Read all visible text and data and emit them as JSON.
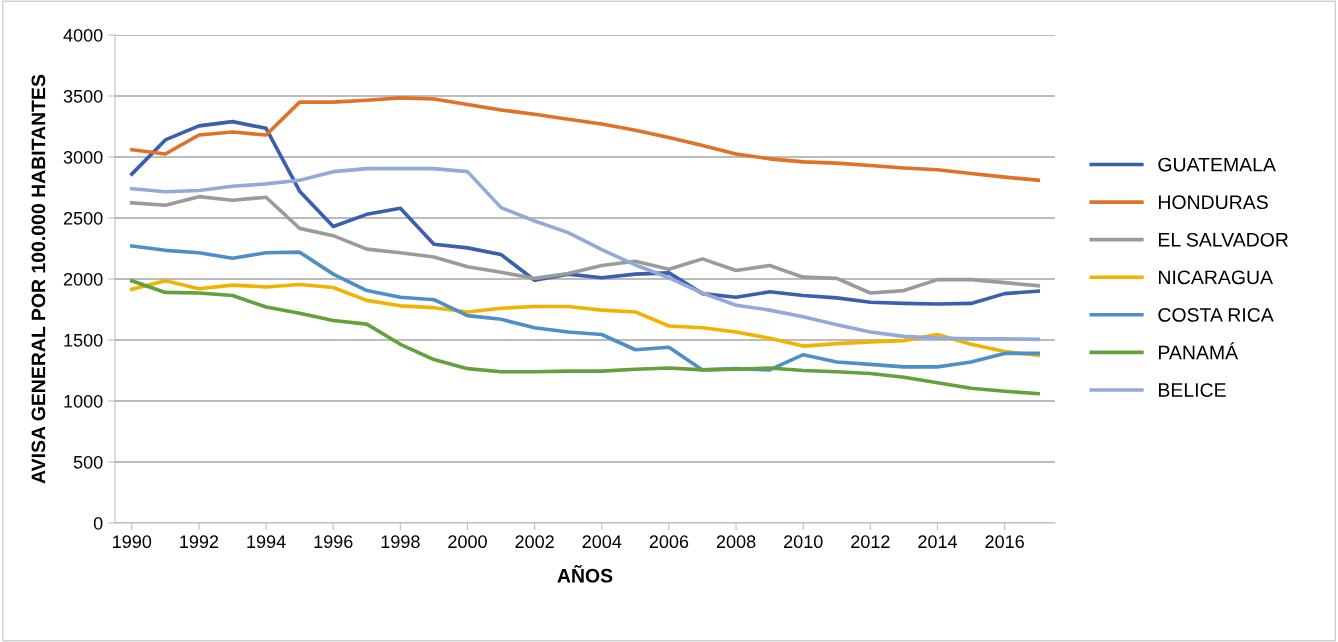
{
  "chart_data": {
    "type": "line",
    "xlabel": "AÑOS",
    "ylabel": "AVISA GENERAL POR 100.000 HABITANTES",
    "x": [
      1990,
      1991,
      1992,
      1993,
      1994,
      1995,
      1996,
      1997,
      1998,
      1999,
      2000,
      2001,
      2002,
      2003,
      2004,
      2005,
      2006,
      2007,
      2008,
      2009,
      2010,
      2011,
      2012,
      2013,
      2014,
      2015,
      2016,
      2017
    ],
    "xlim": [
      1989.5,
      2017.5
    ],
    "xticks": [
      1990,
      1992,
      1994,
      1996,
      1998,
      2000,
      2002,
      2004,
      2006,
      2008,
      2010,
      2012,
      2014,
      2016
    ],
    "ylim": [
      0,
      4000
    ],
    "yticks": [
      0,
      500,
      1000,
      1500,
      2000,
      2500,
      3000,
      3500,
      4000
    ],
    "grid": "y",
    "legend": "right",
    "marker": "none",
    "line_style": "solid",
    "series": [
      {
        "name": "GUATEMALA",
        "color": "#3a5fad",
        "values": [
          2860,
          3140,
          3255,
          3290,
          3235,
          2720,
          2430,
          2530,
          2580,
          2285,
          2255,
          2200,
          1990,
          2040,
          2010,
          2040,
          2050,
          1880,
          1850,
          1895,
          1865,
          1845,
          1810,
          1800,
          1795,
          1800,
          1880,
          1900
        ]
      },
      {
        "name": "HONDURAS",
        "color": "#e07128",
        "values": [
          3060,
          3025,
          3180,
          3205,
          3180,
          3450,
          3450,
          3465,
          3485,
          3475,
          3430,
          3385,
          3350,
          3310,
          3270,
          3220,
          3160,
          3095,
          3025,
          2985,
          2960,
          2950,
          2930,
          2910,
          2895,
          2865,
          2835,
          2810
        ]
      },
      {
        "name": "EL SALVADOR",
        "color": "#9b9b9b",
        "values": [
          2625,
          2605,
          2675,
          2645,
          2670,
          2415,
          2355,
          2245,
          2215,
          2180,
          2100,
          2055,
          2005,
          2045,
          2110,
          2145,
          2080,
          2165,
          2070,
          2110,
          2015,
          2005,
          1885,
          1905,
          1995,
          1995,
          1970,
          1945
        ]
      },
      {
        "name": "NICARAGUA",
        "color": "#efb300",
        "values": [
          1915,
          1985,
          1920,
          1950,
          1935,
          1955,
          1930,
          1825,
          1780,
          1765,
          1730,
          1760,
          1775,
          1775,
          1745,
          1730,
          1615,
          1600,
          1565,
          1515,
          1450,
          1470,
          1485,
          1495,
          1545,
          1465,
          1405,
          1375
        ]
      },
      {
        "name": "COSTA RICA",
        "color": "#4e8fc8",
        "values": [
          2270,
          2235,
          2215,
          2170,
          2215,
          2220,
          2040,
          1905,
          1850,
          1830,
          1700,
          1670,
          1600,
          1565,
          1545,
          1420,
          1440,
          1255,
          1265,
          1255,
          1380,
          1320,
          1300,
          1280,
          1280,
          1320,
          1390,
          1390
        ]
      },
      {
        "name": "PANAMÁ",
        "color": "#64a03c",
        "values": [
          1985,
          1890,
          1885,
          1865,
          1770,
          1720,
          1660,
          1630,
          1465,
          1340,
          1265,
          1240,
          1240,
          1245,
          1245,
          1260,
          1270,
          1255,
          1260,
          1270,
          1250,
          1240,
          1225,
          1195,
          1150,
          1105,
          1080,
          1060
        ]
      },
      {
        "name": "BELICE",
        "color": "#93a9db",
        "values": [
          2740,
          2715,
          2725,
          2760,
          2780,
          2810,
          2880,
          2905,
          2905,
          2905,
          2880,
          2585,
          2475,
          2380,
          2240,
          2115,
          2010,
          1885,
          1785,
          1745,
          1690,
          1625,
          1565,
          1530,
          1515,
          1510,
          1510,
          1505
        ]
      }
    ]
  }
}
